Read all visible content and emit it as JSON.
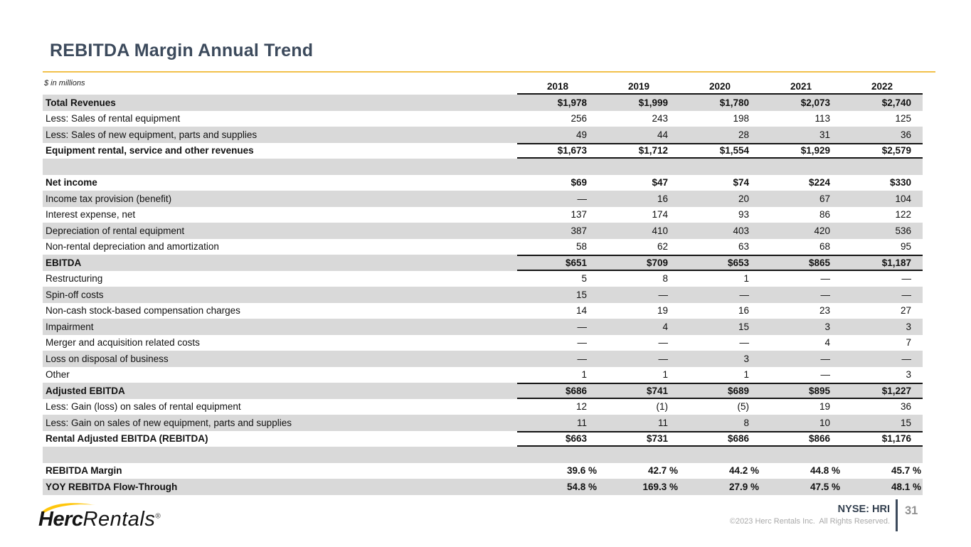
{
  "slide": {
    "title": "REBITDA Margin Annual Trend",
    "units_note": "$ in millions"
  },
  "table": {
    "years": [
      "2018",
      "2019",
      "2020",
      "2021",
      "2022"
    ],
    "rows": [
      {
        "label": "Total Revenues",
        "values": [
          "$1,978",
          "$1,999",
          "$1,780",
          "$2,073",
          "$2,740"
        ],
        "bold": true,
        "shaded": true
      },
      {
        "label": "Less: Sales of rental equipment",
        "values": [
          "256",
          "243",
          "198",
          "113",
          "125"
        ]
      },
      {
        "label": "Less: Sales of new equipment, parts and supplies",
        "values": [
          "49",
          "44",
          "28",
          "31",
          "36"
        ],
        "shaded": true
      },
      {
        "label": "Equipment rental, service and other revenues",
        "values": [
          "$1,673",
          "$1,712",
          "$1,554",
          "$1,929",
          "$2,579"
        ],
        "bold": true,
        "bordered": true
      },
      {
        "label": "",
        "values": [
          "",
          "",
          "",
          "",
          ""
        ],
        "shaded": true,
        "spacer": true
      },
      {
        "label": "Net income",
        "values": [
          "$69",
          "$47",
          "$74",
          "$224",
          "$330"
        ],
        "bold": true
      },
      {
        "label": "Income tax provision (benefit)",
        "values": [
          "—",
          "16",
          "20",
          "67",
          "104"
        ],
        "shaded": true
      },
      {
        "label": "Interest expense, net",
        "values": [
          "137",
          "174",
          "93",
          "86",
          "122"
        ]
      },
      {
        "label": "Depreciation of rental equipment",
        "values": [
          "387",
          "410",
          "403",
          "420",
          "536"
        ],
        "shaded": true
      },
      {
        "label": "Non-rental depreciation and amortization",
        "values": [
          "58",
          "62",
          "63",
          "68",
          "95"
        ]
      },
      {
        "label": "EBITDA",
        "values": [
          "$651",
          "$709",
          "$653",
          "$865",
          "$1,187"
        ],
        "bold": true,
        "shaded": true,
        "bordered": true
      },
      {
        "label": "Restructuring",
        "values": [
          "5",
          "8",
          "1",
          "—",
          "—"
        ]
      },
      {
        "label": "Spin-off costs",
        "values": [
          "15",
          "—",
          "—",
          "—",
          "—"
        ],
        "shaded": true
      },
      {
        "label": "Non-cash stock-based compensation charges",
        "values": [
          "14",
          "19",
          "16",
          "23",
          "27"
        ]
      },
      {
        "label": "Impairment",
        "values": [
          "—",
          "4",
          "15",
          "3",
          "3"
        ],
        "shaded": true
      },
      {
        "label": "Merger and acquisition related costs",
        "values": [
          "—",
          "—",
          "—",
          "4",
          "7"
        ]
      },
      {
        "label": "Loss on disposal of business",
        "values": [
          "—",
          "—",
          "3",
          "—",
          "—"
        ],
        "shaded": true
      },
      {
        "label": "Other",
        "values": [
          "1",
          "1",
          "1",
          "—",
          "3"
        ]
      },
      {
        "label": "Adjusted EBITDA",
        "values": [
          "$686",
          "$741",
          "$689",
          "$895",
          "$1,227"
        ],
        "bold": true,
        "shaded": true,
        "bordered": true
      },
      {
        "label": "Less: Gain (loss) on sales of rental equipment",
        "values": [
          "12",
          "(1)",
          "(5)",
          "19",
          "36"
        ]
      },
      {
        "label": "Less: Gain on sales of new equipment, parts and supplies",
        "values": [
          "11",
          "11",
          "8",
          "10",
          "15"
        ],
        "shaded": true
      },
      {
        "label": "Rental Adjusted EBITDA (REBITDA)",
        "values": [
          "$663",
          "$731",
          "$686",
          "$866",
          "$1,176"
        ],
        "bold": true,
        "bordered": true
      },
      {
        "label": "",
        "values": [
          "",
          "",
          "",
          "",
          ""
        ],
        "shaded": true,
        "spacer": true
      },
      {
        "label": "REBITDA Margin",
        "values": [
          "39.6 %",
          "42.7 %",
          "44.2 %",
          "44.8 %",
          "45.7 %"
        ],
        "bold": true,
        "percent": true
      },
      {
        "label": "YOY REBITDA Flow-Through",
        "values": [
          "54.8 %",
          "169.3 %",
          "27.9 %",
          "47.5 %",
          "48.1 %"
        ],
        "bold": true,
        "shaded": true,
        "percent": true
      }
    ]
  },
  "footer": {
    "logo_herc": "Herc",
    "logo_rentals": "Rentals",
    "logo_reg": "®",
    "ticker": "NYSE: HRI",
    "copyright": "©2023 Herc Rentals Inc.  All Rights Reserved.",
    "page_number": "31"
  },
  "colors": {
    "title": "#3c4a5c",
    "gold_rule": "#f2c14b",
    "row_shade": "#d9d9d9",
    "logo_yellow": "#ffc60b",
    "footer_gray": "#a9a9a9"
  }
}
